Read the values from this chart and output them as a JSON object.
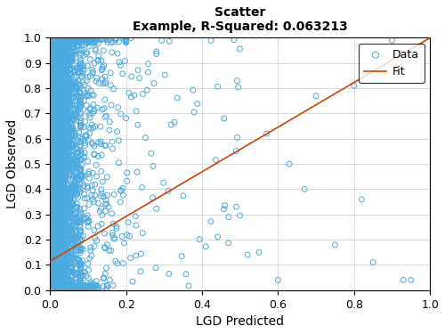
{
  "title_line1": "Scatter",
  "title_line2": "Example, R-Squared: 0.063213",
  "xlabel": "LGD Predicted",
  "ylabel": "LGD Observed",
  "xlim": [
    0,
    1
  ],
  "ylim": [
    0,
    1
  ],
  "scatter_color": "#4DAADF",
  "scatter_facecolor": "none",
  "scatter_size": 18,
  "scatter_linewidth": 0.7,
  "fit_color": "#CC4400",
  "fit_x": [
    0,
    1
  ],
  "fit_y": [
    0.115,
    1.0
  ],
  "legend_labels": [
    "Data",
    "Fit"
  ],
  "xticks": [
    0,
    0.2,
    0.4,
    0.6,
    0.8,
    1.0
  ],
  "yticks": [
    0,
    0.1,
    0.2,
    0.3,
    0.4,
    0.5,
    0.6,
    0.7,
    0.8,
    0.9,
    1.0
  ],
  "grid_color": "#D3D3D3",
  "background_color": "#FFFFFF",
  "fig_bg_color": "#FFFFFF",
  "seed": 42,
  "n_cluster": 3500,
  "n_cluster2": 1500,
  "n_sparse": 60,
  "title_fontsize": 10,
  "axis_fontsize": 10,
  "tick_fontsize": 9
}
